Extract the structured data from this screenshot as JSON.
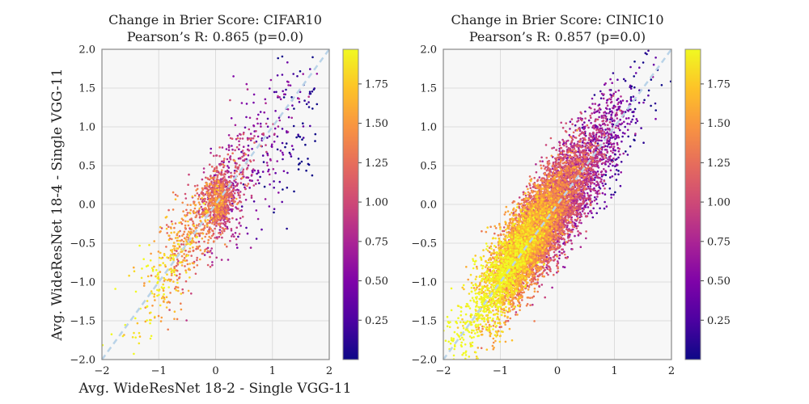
{
  "chart_data": [
    {
      "type": "scatter",
      "title": "Change in Brier Score:  CIFAR10",
      "subtitle": "Pearson’s R: 0.865 (p=0.0)",
      "xlabel": "Avg.  WideResNet 18-2 - Single VGG-11",
      "ylabel": "Avg.  WideResNet 18-4 - Single VGG-11",
      "xlim": [
        -2,
        2
      ],
      "ylim": [
        -2,
        2
      ],
      "xticks": [
        "−2",
        "−1",
        "0",
        "1",
        "2"
      ],
      "yticks": [
        "−2.0",
        "−1.5",
        "−1.0",
        "−0.5",
        "0.0",
        "0.5",
        "1.0",
        "1.5",
        "2.0"
      ],
      "grid": true,
      "reference_line": "y = x (dashed)",
      "colormap": "plasma",
      "colorbar_range": [
        0,
        1.97
      ],
      "colorbar_ticks": [
        "0.25",
        "0.50",
        "0.75",
        "1.00",
        "1.25",
        "1.50",
        "1.75"
      ],
      "points_approx": 1800,
      "pearson_r": 0.865,
      "p_value": 0.0
    },
    {
      "type": "scatter",
      "title": "Change in Brier Score:  CINIC10",
      "subtitle": "Pearson’s R: 0.857 (p=0.0)",
      "xlabel": "",
      "ylabel": "",
      "xlim": [
        -2,
        2
      ],
      "ylim": [
        -2,
        2
      ],
      "xticks": [
        "−2",
        "−1",
        "0",
        "1",
        "2"
      ],
      "yticks": [
        "−2.0",
        "−1.5",
        "−1.0",
        "−0.5",
        "0.0",
        "0.5",
        "1.0",
        "1.5",
        "2.0"
      ],
      "grid": true,
      "reference_line": "y = x (dashed)",
      "colormap": "plasma",
      "colorbar_range": [
        0,
        1.97
      ],
      "colorbar_ticks": [
        "0.25",
        "0.50",
        "0.75",
        "1.00",
        "1.25",
        "1.50",
        "1.75"
      ],
      "points_approx": 9000,
      "pearson_r": 0.857,
      "p_value": 0.0
    }
  ],
  "colors": {
    "plot_bg": "#f7f7f7",
    "grid": "#dcdcdc",
    "frame": "#888888",
    "ref_line": "#b9d3e8"
  }
}
